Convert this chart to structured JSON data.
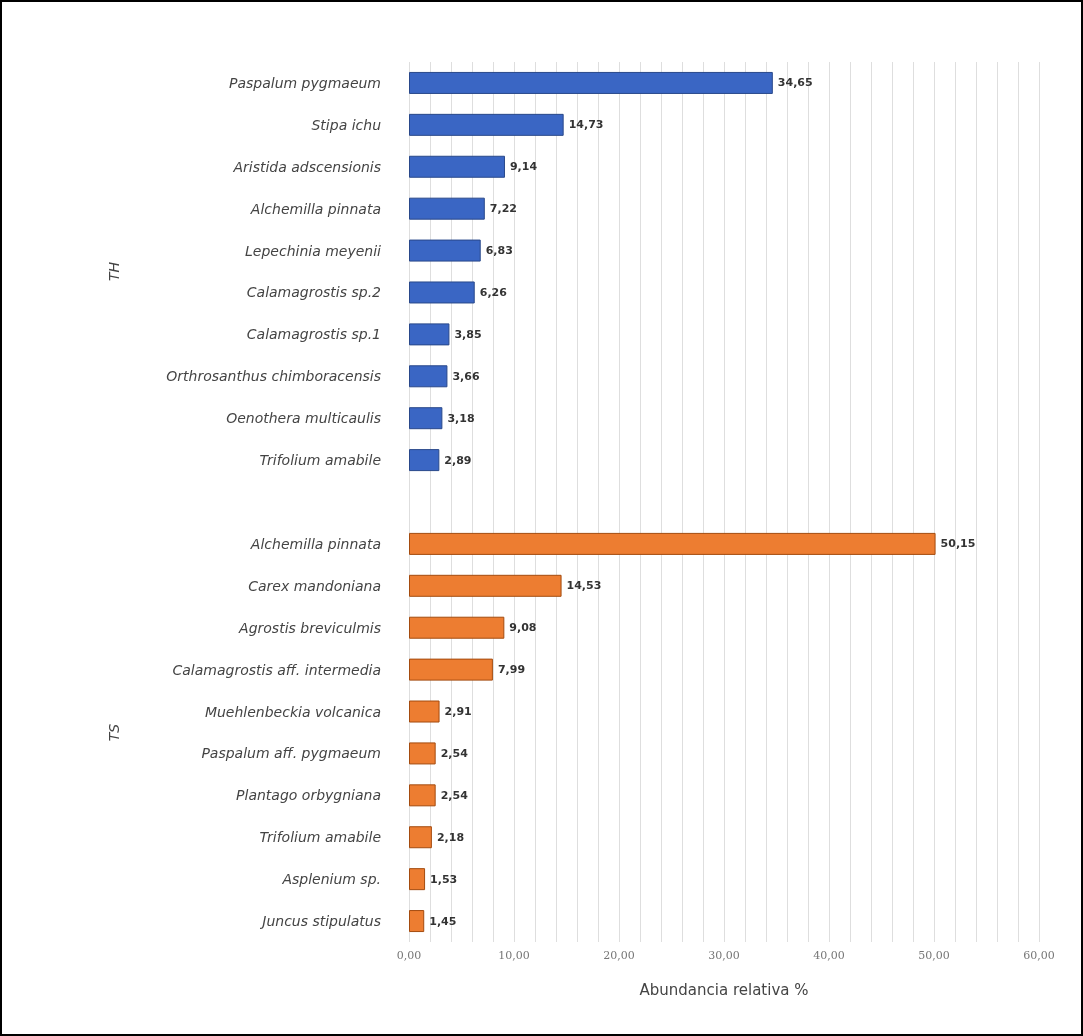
{
  "chart_data": {
    "type": "bar",
    "orientation": "horizontal",
    "xlabel": "Abundancia relativa %",
    "annotations": [
      "TH",
      "TS"
    ],
    "categories": [
      "Paspalum pygmaeum",
      "Stipa ichu",
      "Aristida adscensionis",
      "Alchemilla pinnata",
      "Lepechinia meyenii",
      "Calamagrostis sp.2",
      "Calamagrostis sp.1",
      "Orthrosanthus chimboracensis",
      "Oenothera multicaulis",
      "Trifolium amabile",
      null,
      "Alchemilla pinnata",
      "Carex mandoniana",
      "Agrostis breviculmis",
      "Calamagrostis aff. intermedia",
      "Muehlenbeckia volcanica",
      "Paspalum aff. pygmaeum",
      "Plantago orbygniana",
      "Trifolium amabile",
      "Asplenium sp.",
      "Juncus stipulatus"
    ],
    "series": [
      {
        "color": "#3a66c4",
        "values": [
          34.65,
          14.73,
          9.14,
          7.22,
          6.83,
          6.26,
          3.85,
          3.66,
          3.18,
          2.89,
          null,
          null,
          null,
          null,
          null,
          null,
          null,
          null,
          null,
          null,
          null
        ],
        "value_labels": [
          "34,65",
          "14,73",
          "9,14",
          "7,22",
          "6,83",
          "6,26",
          "3,85",
          "3,66",
          "3,18",
          "2,89",
          null,
          null,
          null,
          null,
          null,
          null,
          null,
          null,
          null,
          null,
          null
        ]
      },
      {
        "color": "#ed7d31",
        "values": [
          null,
          null,
          null,
          null,
          null,
          null,
          null,
          null,
          null,
          null,
          null,
          50.15,
          14.53,
          9.08,
          7.99,
          2.91,
          2.54,
          2.54,
          2.18,
          1.53,
          1.45
        ],
        "value_labels": [
          null,
          null,
          null,
          null,
          null,
          null,
          null,
          null,
          null,
          null,
          null,
          "50,15",
          "14,53",
          "9,08",
          "7,99",
          "2,91",
          "2,54",
          "2,54",
          "2,18",
          "1,53",
          "1,45"
        ]
      }
    ],
    "xlim": [
      0,
      60
    ],
    "xticks": [
      {
        "value": 0,
        "label": "0,00"
      },
      {
        "value": 2,
        "label": null
      },
      {
        "value": 4,
        "label": null
      },
      {
        "value": 6,
        "label": null
      },
      {
        "value": 8,
        "label": null
      },
      {
        "value": 10,
        "label": "10,00"
      },
      {
        "value": 12,
        "label": null
      },
      {
        "value": 14,
        "label": null
      },
      {
        "value": 16,
        "label": null
      },
      {
        "value": 18,
        "label": null
      },
      {
        "value": 20,
        "label": "20,00"
      },
      {
        "value": 22,
        "label": null
      },
      {
        "value": 24,
        "label": null
      },
      {
        "value": 26,
        "label": null
      },
      {
        "value": 28,
        "label": null
      },
      {
        "value": 30,
        "label": "30,00"
      },
      {
        "value": 32,
        "label": null
      },
      {
        "value": 34,
        "label": null
      },
      {
        "value": 36,
        "label": null
      },
      {
        "value": 38,
        "label": null
      },
      {
        "value": 40,
        "label": "40,00"
      },
      {
        "value": 42,
        "label": null
      },
      {
        "value": 44,
        "label": null
      },
      {
        "value": 46,
        "label": null
      },
      {
        "value": 48,
        "label": null
      },
      {
        "value": 50,
        "label": "50,00"
      },
      {
        "value": 52,
        "label": null
      },
      {
        "value": 54,
        "label": null
      },
      {
        "value": 56,
        "label": null
      },
      {
        "value": 58,
        "label": null
      },
      {
        "value": 60,
        "label": "60,00"
      }
    ],
    "grid": "x"
  }
}
